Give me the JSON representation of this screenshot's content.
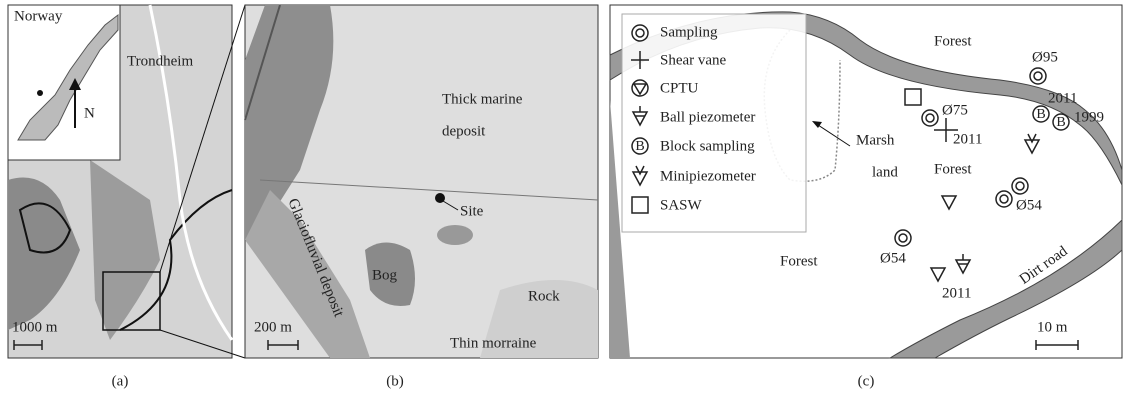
{
  "panel_a": {
    "caption": "(a)",
    "inset_title": "Norway",
    "north": "N",
    "city": "Trondheim",
    "scale": "1000 m"
  },
  "panel_b": {
    "caption": "(b)",
    "labels": [
      "Thick marine",
      "deposit",
      "Site",
      "Glaciofluvial deposit",
      "Bog",
      "Rock",
      "Thin morraine"
    ],
    "scale": "200 m"
  },
  "panel_c": {
    "caption": "(c)",
    "legend": [
      "Sampling",
      "Shear vane",
      "CPTU",
      "Ball piezometer",
      "Block sampling",
      "Minipiezometer",
      "SASW"
    ],
    "labels": [
      "Forest",
      "Ø95",
      "2011",
      "Ø75",
      "2011",
      "1999",
      "Marsh",
      "land",
      "Forest",
      "Ø54",
      "Ø54",
      "Forest",
      "2011",
      "Dirt road"
    ],
    "scale": "10 m"
  }
}
